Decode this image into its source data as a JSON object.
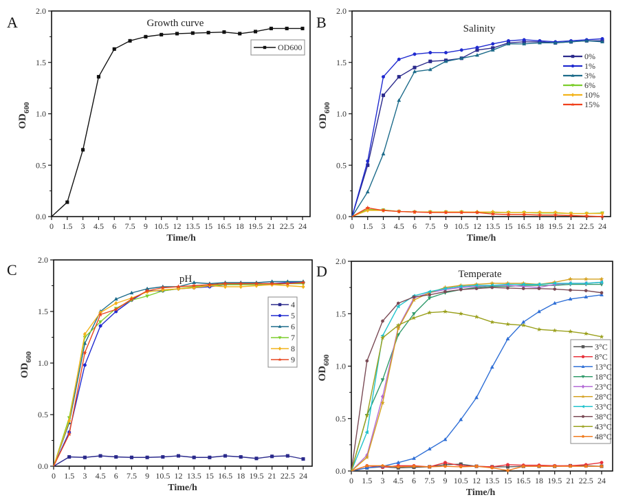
{
  "chart_data": [
    {
      "panel_label": "A",
      "type": "line",
      "title": "Growth curve",
      "xlabel": "Time/h",
      "ylabel": "OD600",
      "ylabel_main": "OD",
      "ylabel_sub": "600",
      "xlim": [
        0,
        24
      ],
      "ylim": [
        0,
        2.0
      ],
      "x": [
        0,
        1.5,
        3,
        4.5,
        6,
        7.5,
        9,
        10.5,
        12,
        13.5,
        15,
        16.5,
        18,
        19.5,
        21,
        22.5,
        24
      ],
      "xticks": [
        "0",
        "1.5",
        "3",
        "4.5",
        "6",
        "7.5",
        "9",
        "10.5",
        "12",
        "13.5",
        "15",
        "16.5",
        "18",
        "19.5",
        "21",
        "22.5",
        "24"
      ],
      "yticks": [
        "0.0",
        "0.5",
        "1.0",
        "1.5",
        "2.0"
      ],
      "legend_position": "top-right",
      "legend_boxed": true,
      "grid": false,
      "series": [
        {
          "name": "OD600",
          "color": "#111111",
          "marker": "square",
          "values": [
            0.0,
            0.14,
            0.65,
            1.36,
            1.63,
            1.71,
            1.75,
            1.77,
            1.78,
            1.785,
            1.79,
            1.795,
            1.78,
            1.8,
            1.83,
            1.83,
            1.83
          ]
        }
      ]
    },
    {
      "panel_label": "B",
      "type": "line",
      "title": "Salinity",
      "xlabel": "Time/h",
      "ylabel": "OD600",
      "ylabel_main": "OD",
      "ylabel_sub": "600",
      "xlim": [
        0,
        24
      ],
      "ylim": [
        0,
        2.0
      ],
      "x": [
        0,
        1.5,
        3,
        4.5,
        6,
        7.5,
        9,
        10.5,
        12,
        13.5,
        15,
        16.5,
        18,
        19.5,
        21,
        22.5,
        24
      ],
      "xticks": [
        "0",
        "1.5",
        "3",
        "4.5",
        "6",
        "7.5",
        "9",
        "10.5",
        "12",
        "13.5",
        "15",
        "16.5",
        "18",
        "19.5",
        "21",
        "22.5",
        "24"
      ],
      "yticks": [
        "0.0",
        "0.5",
        "1.0",
        "1.5",
        "2.0"
      ],
      "legend_position": "right",
      "legend_boxed": false,
      "grid": false,
      "series": [
        {
          "name": "0%",
          "color": "#2b2a8c",
          "marker": "square",
          "values": [
            0.0,
            0.5,
            1.18,
            1.36,
            1.45,
            1.51,
            1.52,
            1.54,
            1.62,
            1.64,
            1.69,
            1.7,
            1.7,
            1.69,
            1.7,
            1.71,
            1.71
          ]
        },
        {
          "name": "1%",
          "color": "#1f2ad0",
          "marker": "circle",
          "values": [
            0.0,
            0.54,
            1.36,
            1.53,
            1.58,
            1.595,
            1.595,
            1.62,
            1.645,
            1.68,
            1.71,
            1.72,
            1.71,
            1.7,
            1.71,
            1.72,
            1.73
          ]
        },
        {
          "name": "3%",
          "color": "#1c6b8a",
          "marker": "triangle",
          "values": [
            0.0,
            0.24,
            0.61,
            1.13,
            1.41,
            1.43,
            1.51,
            1.54,
            1.57,
            1.62,
            1.68,
            1.68,
            1.69,
            1.69,
            1.7,
            1.71,
            1.7
          ]
        },
        {
          "name": "6%",
          "color": "#7ccd2c",
          "marker": "triangle-down",
          "values": [
            0.0,
            0.07,
            0.065,
            0.05,
            0.045,
            0.045,
            0.045,
            0.045,
            0.04,
            0.04,
            0.04,
            0.04,
            0.035,
            0.035,
            0.03,
            0.03,
            0.035
          ]
        },
        {
          "name": "10%",
          "color": "#f2b31b",
          "marker": "diamond",
          "values": [
            0.0,
            0.06,
            0.06,
            0.05,
            0.045,
            0.045,
            0.045,
            0.045,
            0.045,
            0.045,
            0.04,
            0.04,
            0.04,
            0.04,
            0.03,
            0.03,
            0.03
          ]
        },
        {
          "name": "15%",
          "color": "#f0401c",
          "marker": "star",
          "values": [
            0.0,
            0.085,
            0.06,
            0.05,
            0.045,
            0.04,
            0.04,
            0.04,
            0.04,
            0.025,
            0.02,
            0.02,
            0.015,
            0.015,
            0.01,
            0.005,
            0.0
          ]
        }
      ]
    },
    {
      "panel_label": "C",
      "type": "line",
      "title": "pH",
      "xlabel": "Time/h",
      "ylabel": "OD600",
      "ylabel_main": "OD",
      "ylabel_sub": "600",
      "xlim": [
        0,
        24
      ],
      "ylim": [
        0,
        2.0
      ],
      "x": [
        0,
        1.5,
        3,
        4.5,
        6,
        7.5,
        9,
        10.5,
        12,
        13.5,
        15,
        16.5,
        18,
        19.5,
        21,
        22.5,
        24
      ],
      "xticks": [
        "0",
        "1.5",
        "3",
        "4.5",
        "6",
        "7.5",
        "9",
        "10.5",
        "12",
        "13.5",
        "15",
        "16.5",
        "18",
        "19.5",
        "21",
        "22.5",
        "24"
      ],
      "yticks": [
        "0.0",
        "0.5",
        "1.0",
        "1.5",
        "2.0"
      ],
      "legend_position": "right",
      "legend_boxed": true,
      "grid": false,
      "series": [
        {
          "name": "4",
          "color": "#2b2a8c",
          "marker": "square",
          "values": [
            0.0,
            0.09,
            0.085,
            0.1,
            0.09,
            0.085,
            0.085,
            0.09,
            0.1,
            0.085,
            0.085,
            0.1,
            0.09,
            0.075,
            0.095,
            0.1,
            0.07
          ]
        },
        {
          "name": "5",
          "color": "#1f2ad0",
          "marker": "circle",
          "values": [
            0.0,
            0.33,
            0.98,
            1.36,
            1.5,
            1.61,
            1.7,
            1.7,
            1.72,
            1.73,
            1.74,
            1.76,
            1.77,
            1.77,
            1.77,
            1.78,
            1.78
          ]
        },
        {
          "name": "6",
          "color": "#1c6b8a",
          "marker": "triangle",
          "values": [
            0.0,
            0.42,
            1.19,
            1.5,
            1.62,
            1.68,
            1.72,
            1.74,
            1.74,
            1.78,
            1.77,
            1.78,
            1.78,
            1.78,
            1.79,
            1.79,
            1.79
          ]
        },
        {
          "name": "7",
          "color": "#7ccd2c",
          "marker": "triangle-down",
          "values": [
            0.0,
            0.47,
            1.25,
            1.4,
            1.53,
            1.61,
            1.65,
            1.7,
            1.72,
            1.74,
            1.75,
            1.76,
            1.76,
            1.76,
            1.76,
            1.77,
            1.77
          ]
        },
        {
          "name": "8",
          "color": "#f2b31b",
          "marker": "diamond",
          "values": [
            0.0,
            0.44,
            1.28,
            1.49,
            1.58,
            1.63,
            1.69,
            1.71,
            1.72,
            1.73,
            1.75,
            1.74,
            1.74,
            1.75,
            1.76,
            1.75,
            1.74
          ]
        },
        {
          "name": "9",
          "color": "#e8461e",
          "marker": "star",
          "values": [
            0.0,
            0.31,
            1.1,
            1.47,
            1.52,
            1.62,
            1.7,
            1.73,
            1.74,
            1.75,
            1.76,
            1.77,
            1.77,
            1.77,
            1.77,
            1.77,
            1.78
          ]
        }
      ]
    },
    {
      "panel_label": "D",
      "type": "line",
      "title": "Temperate",
      "xlabel": "Time/h",
      "ylabel": "OD600",
      "ylabel_main": "OD",
      "ylabel_sub": "600",
      "xlim": [
        0,
        24
      ],
      "ylim": [
        0,
        2.0
      ],
      "x": [
        0,
        1.5,
        3,
        4.5,
        6,
        7.5,
        9,
        10.5,
        12,
        13.5,
        15,
        16.5,
        18,
        19.5,
        21,
        22.5,
        24
      ],
      "xticks": [
        "0",
        "1.5",
        "3",
        "4.5",
        "6",
        "7.5",
        "9",
        "10.5",
        "12",
        "13.5",
        "15",
        "16.5",
        "18",
        "19.5",
        "21",
        "22.5",
        "24"
      ],
      "yticks": [
        "0.0",
        "0.5",
        "1.0",
        "1.5",
        "2.0"
      ],
      "legend_position": "bottom-right",
      "legend_boxed": true,
      "grid": false,
      "series": [
        {
          "name": "3°C",
          "color": "#555555",
          "marker": "square",
          "values": [
            0.0,
            0.03,
            0.04,
            0.03,
            0.035,
            0.04,
            0.06,
            0.065,
            0.045,
            0.04,
            0.04,
            0.045,
            0.045,
            0.045,
            0.05,
            0.05,
            0.045
          ]
        },
        {
          "name": "8°C",
          "color": "#e8313a",
          "marker": "circle",
          "values": [
            0.0,
            0.05,
            0.035,
            0.05,
            0.05,
            0.04,
            0.08,
            0.05,
            0.045,
            0.04,
            0.06,
            0.055,
            0.055,
            0.05,
            0.05,
            0.06,
            0.08
          ]
        },
        {
          "name": "13°C",
          "color": "#2f6fd6",
          "marker": "triangle",
          "values": [
            0.0,
            0.03,
            0.045,
            0.08,
            0.12,
            0.21,
            0.3,
            0.49,
            0.7,
            0.99,
            1.26,
            1.42,
            1.52,
            1.6,
            1.64,
            1.66,
            1.68
          ]
        },
        {
          "name": "18°C",
          "color": "#2f9a6a",
          "marker": "triangle-down",
          "values": [
            0.0,
            0.53,
            0.87,
            1.3,
            1.5,
            1.65,
            1.7,
            1.73,
            1.75,
            1.76,
            1.76,
            1.77,
            1.77,
            1.77,
            1.78,
            1.78,
            1.78
          ]
        },
        {
          "name": "23°C",
          "color": "#b36ad6",
          "marker": "diamond",
          "values": [
            0.0,
            0.15,
            0.71,
            1.37,
            1.65,
            1.7,
            1.73,
            1.75,
            1.76,
            1.77,
            1.77,
            1.76,
            1.75,
            1.78,
            1.79,
            1.79,
            1.8
          ]
        },
        {
          "name": "28°C",
          "color": "#d4a01f",
          "marker": "star",
          "values": [
            0.0,
            0.13,
            0.65,
            1.36,
            1.63,
            1.7,
            1.75,
            1.77,
            1.78,
            1.79,
            1.79,
            1.79,
            1.78,
            1.8,
            1.83,
            1.83,
            1.83
          ]
        },
        {
          "name": "33°C",
          "color": "#1fc2cc",
          "marker": "triangle-left",
          "values": [
            0.0,
            0.37,
            1.29,
            1.57,
            1.67,
            1.71,
            1.74,
            1.76,
            1.77,
            1.77,
            1.78,
            1.78,
            1.78,
            1.79,
            1.79,
            1.79,
            1.8
          ]
        },
        {
          "name": "38°C",
          "color": "#7a4a55",
          "marker": "hexagon",
          "values": [
            0.0,
            1.05,
            1.43,
            1.6,
            1.66,
            1.68,
            1.71,
            1.73,
            1.74,
            1.75,
            1.745,
            1.74,
            1.74,
            1.735,
            1.725,
            1.72,
            1.7
          ]
        },
        {
          "name": "43°C",
          "color": "#9aa01c",
          "marker": "star",
          "values": [
            0.0,
            0.53,
            1.27,
            1.39,
            1.46,
            1.51,
            1.52,
            1.5,
            1.47,
            1.42,
            1.4,
            1.39,
            1.35,
            1.34,
            1.33,
            1.31,
            1.28
          ]
        },
        {
          "name": "48°C",
          "color": "#f07a1c",
          "marker": "pentagon",
          "values": [
            0.0,
            0.05,
            0.05,
            0.04,
            0.045,
            0.04,
            0.045,
            0.04,
            0.045,
            0.03,
            0.005,
            0.045,
            0.045,
            0.045,
            0.045,
            0.045,
            0.045
          ]
        }
      ]
    }
  ]
}
